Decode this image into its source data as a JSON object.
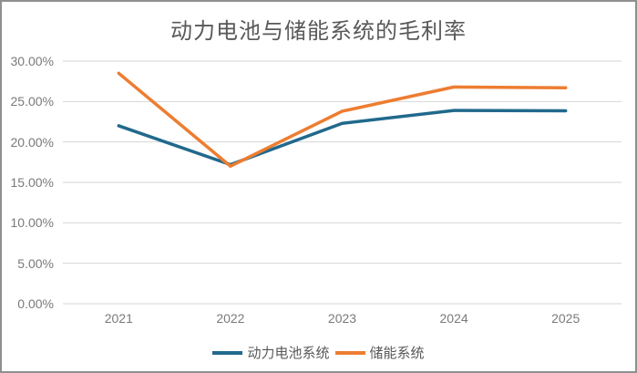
{
  "window": {
    "background": "#ffffff",
    "border_color": "#8f8f8f"
  },
  "chart_data": {
    "type": "line",
    "title": "动力电池与储能系统的毛利率",
    "categories": [
      "2021",
      "2022",
      "2023",
      "2024",
      "2025"
    ],
    "series": [
      {
        "name": "动力电池系统",
        "color": "#21698C",
        "values": [
          22.0,
          17.2,
          22.3,
          23.9,
          23.85
        ]
      },
      {
        "name": "储能系统",
        "color": "#ED7D31",
        "values": [
          28.5,
          17.0,
          23.8,
          26.8,
          26.7
        ]
      }
    ],
    "ylim": [
      0,
      30
    ],
    "y_tick_step": 5,
    "y_tick_labels": [
      "0.00%",
      "5.00%",
      "10.00%",
      "15.00%",
      "20.00%",
      "25.00%",
      "30.00%"
    ],
    "xlabel": "",
    "ylabel": "",
    "grid": true,
    "gridline_color": "#D6D6D6",
    "axis_text_color": "#7a7a7a",
    "title_color": "#595959",
    "legend_position": "bottom",
    "line_width": 3.5
  }
}
